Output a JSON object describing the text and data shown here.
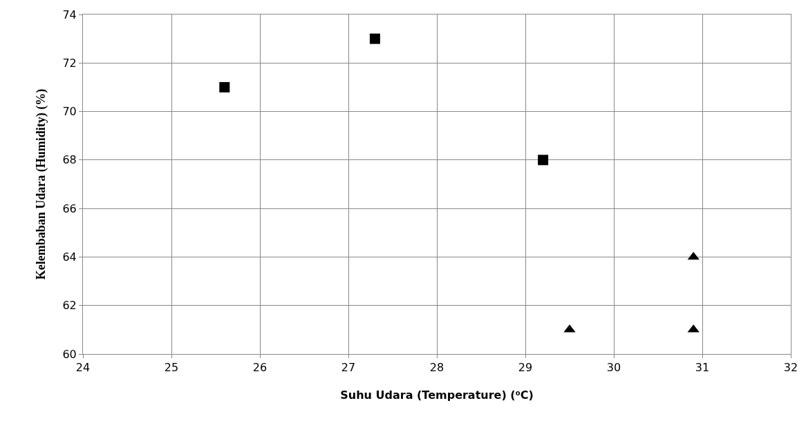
{
  "chart_data": {
    "type": "scatter",
    "xlabel": "Suhu Udara (Temperature) (⁰C)",
    "ylabel": "Kelembaban Udara (Humidity) (%)",
    "series": [
      {
        "color": "#000000",
        "marker": "square",
        "x": [
          25.6,
          27.3,
          29.2
        ],
        "values": [
          71,
          73,
          68
        ]
      },
      {
        "color": "#000000",
        "marker": "triangle",
        "x": [
          29.5,
          30.9,
          30.9
        ],
        "values": [
          61,
          64,
          61
        ]
      }
    ],
    "xlim": [
      24,
      32
    ],
    "xticks": [
      24,
      25,
      26,
      27,
      28,
      29,
      30,
      31,
      32
    ],
    "ylim": [
      60,
      74
    ],
    "yticks": [
      60,
      62,
      64,
      66,
      68,
      70,
      72,
      74
    ],
    "grid": true,
    "legend": false
  }
}
